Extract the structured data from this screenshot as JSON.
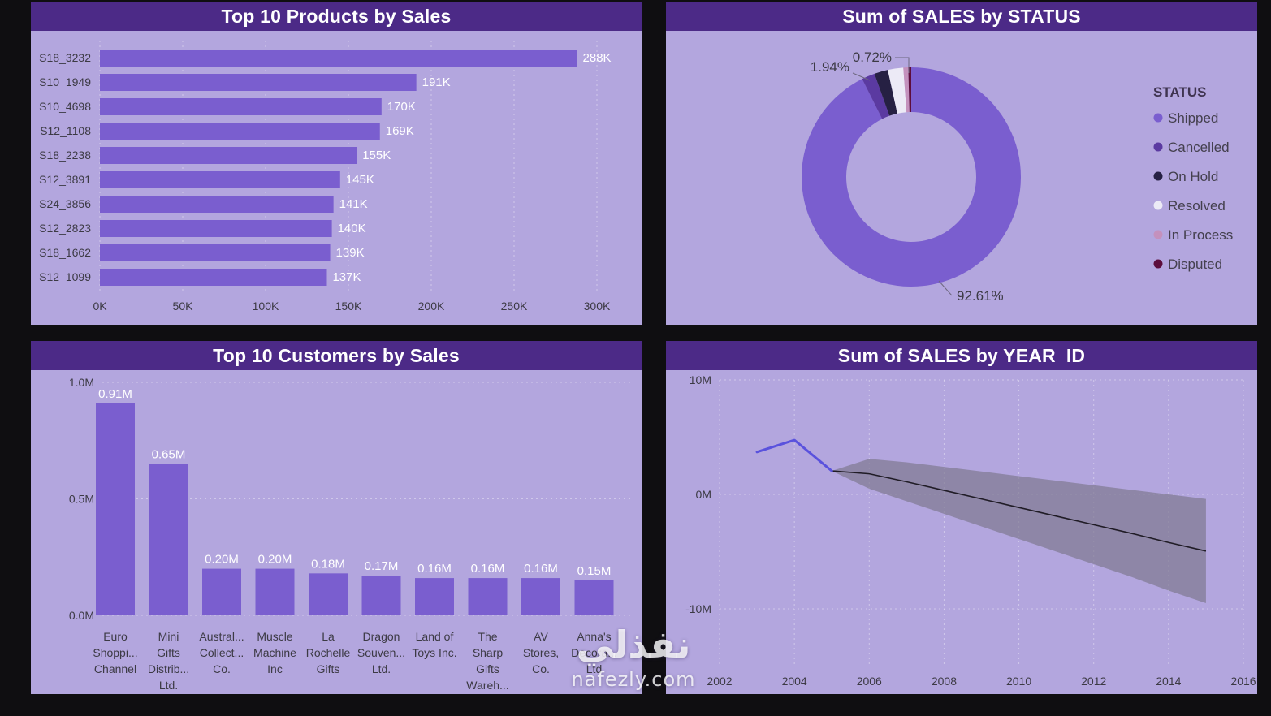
{
  "watermark": {
    "arabic": "نفذلي",
    "domain": "nafezly.com"
  },
  "colors": {
    "page_bg": "#0f0e11",
    "panel_bg": "#b3a6de",
    "header_bg": "#4c2a87",
    "header_text": "#ffffff",
    "bar": "#7a5ecf",
    "axis_text": "#3c3a44",
    "value_text": "#ffffff",
    "actual_line": "#5a52dd",
    "forecast_line": "#201c26",
    "band": "#7f7990",
    "callout_line": "#6e6880"
  },
  "chart_data": [
    {
      "id": "products",
      "type": "bar",
      "orientation": "horizontal",
      "title": "Top 10 Products by Sales",
      "categories": [
        "S18_3232",
        "S10_1949",
        "S10_4698",
        "S12_1108",
        "S18_2238",
        "S12_3891",
        "S24_3856",
        "S12_2823",
        "S18_1662",
        "S12_1099"
      ],
      "values": [
        288,
        191,
        170,
        169,
        155,
        145,
        141,
        140,
        139,
        137
      ],
      "value_labels": [
        "288K",
        "191K",
        "170K",
        "169K",
        "155K",
        "145K",
        "141K",
        "140K",
        "139K",
        "137K"
      ],
      "x_ticks": [
        "0K",
        "50K",
        "100K",
        "150K",
        "200K",
        "250K",
        "300K"
      ],
      "x_max": 300,
      "xlabel": "",
      "ylabel": "",
      "grid": "dotted-vertical"
    },
    {
      "id": "status",
      "type": "pie",
      "donut": true,
      "title": "Sum of SALES by STATUS",
      "legend_title": "STATUS",
      "legend_position": "right",
      "slices": [
        {
          "label": "Shipped",
          "pct": 92.61,
          "color": "#7a5ecf",
          "callout": "92.61%"
        },
        {
          "label": "Cancelled",
          "pct": 1.94,
          "color": "#5b3aa1",
          "callout": "1.94%"
        },
        {
          "label": "On Hold",
          "pct": 2.02,
          "color": "#262043",
          "callout": ""
        },
        {
          "label": "Resolved",
          "pct": 2.28,
          "color": "#eceaf6",
          "callout": ""
        },
        {
          "label": "In Process",
          "pct": 0.72,
          "color": "#c491bd",
          "callout": "0.72%"
        },
        {
          "label": "Disputed",
          "pct": 0.43,
          "color": "#5c0d3c",
          "callout": ""
        }
      ]
    },
    {
      "id": "customers",
      "type": "bar",
      "orientation": "vertical",
      "title": "Top 10 Customers by Sales",
      "categories": [
        [
          "Euro",
          "Shoppi...",
          "Channel"
        ],
        [
          "Mini",
          "Gifts",
          "Distrib...",
          "Ltd."
        ],
        [
          "Austral...",
          "Collect...",
          "Co."
        ],
        [
          "Muscle",
          "Machine",
          "Inc"
        ],
        [
          "La",
          "Rochelle",
          "Gifts"
        ],
        [
          "Dragon",
          "Souven...",
          "Ltd."
        ],
        [
          "Land of",
          "Toys Inc."
        ],
        [
          "The",
          "Sharp",
          "Gifts",
          "Wareh..."
        ],
        [
          "AV",
          "Stores,",
          "Co."
        ],
        [
          "Anna's",
          "Decora...",
          "Ltd"
        ]
      ],
      "values": [
        0.91,
        0.65,
        0.2,
        0.2,
        0.18,
        0.17,
        0.16,
        0.16,
        0.16,
        0.15
      ],
      "value_labels": [
        "0.91M",
        "0.65M",
        "0.20M",
        "0.20M",
        "0.18M",
        "0.17M",
        "0.16M",
        "0.16M",
        "0.16M",
        "0.15M"
      ],
      "y_ticks": [
        "0.0M",
        "0.5M",
        "1.0M"
      ],
      "y_tick_values": [
        0,
        0.5,
        1.0
      ],
      "y_max": 1.0,
      "grid": "dotted-horizontal"
    },
    {
      "id": "years",
      "type": "line",
      "title": "Sum of SALES by YEAR_ID",
      "x_ticks": [
        "2002",
        "2004",
        "2006",
        "2008",
        "2010",
        "2012",
        "2014",
        "2016"
      ],
      "x_range": [
        2002,
        2016
      ],
      "y_ticks": [
        "10M",
        "0M",
        "-10M"
      ],
      "y_tick_values": [
        10,
        0,
        -10
      ],
      "y_range": [
        -10,
        10
      ],
      "grid": "dotted-both",
      "series": [
        {
          "name": "actual",
          "x": [
            2003,
            2004,
            2005
          ],
          "y": [
            3.7,
            4.75,
            2.05
          ]
        },
        {
          "name": "forecast",
          "x": [
            2005,
            2006,
            2007,
            2008,
            2009,
            2010,
            2011,
            2012,
            2013,
            2014,
            2015
          ],
          "y": [
            2.05,
            1.8,
            1.1,
            0.35,
            -0.4,
            -1.15,
            -1.9,
            -2.65,
            -3.4,
            -4.2,
            -4.95
          ]
        }
      ],
      "band": {
        "x": [
          2005,
          2006,
          2007,
          2008,
          2009,
          2010,
          2011,
          2012,
          2013,
          2014,
          2015
        ],
        "upper": [
          2.05,
          3.1,
          2.8,
          2.4,
          2.0,
          1.6,
          1.2,
          0.8,
          0.4,
          0.0,
          -0.4
        ],
        "lower": [
          2.05,
          0.5,
          -0.6,
          -1.7,
          -2.8,
          -3.9,
          -5.0,
          -6.1,
          -7.2,
          -8.4,
          -9.5
        ]
      }
    }
  ]
}
